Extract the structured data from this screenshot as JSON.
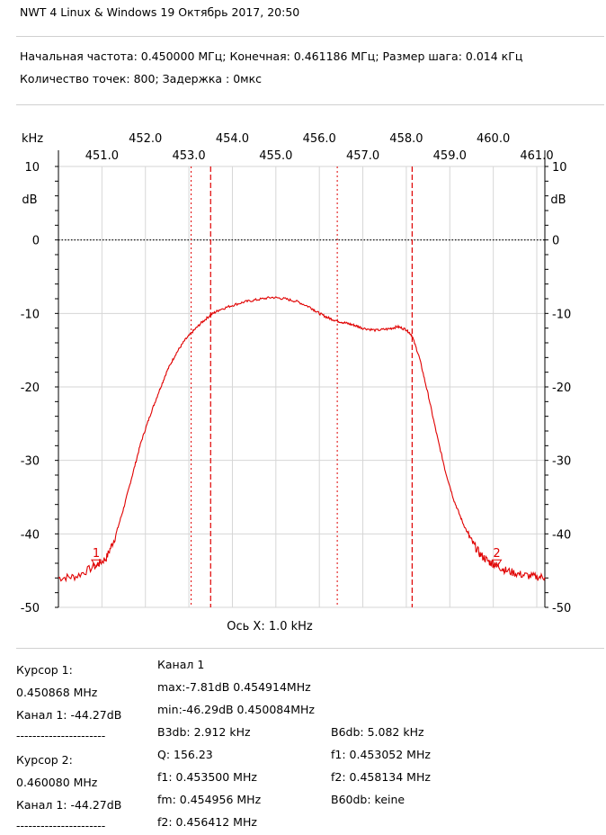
{
  "header": {
    "title": "NWT 4 Linux & Windows  19 Октябрь 2017, 20:50",
    "sweep_line1": "Начальная частота: 0.450000 МГц; Конечная: 0.461186 МГц; Размер шага: 0.014 кГц",
    "sweep_line2": "Количество точек:  800; Задержка :   0мкс"
  },
  "chart_data": {
    "type": "line",
    "x_unit_label": "kHz",
    "y_unit_label": "dB",
    "x_axis_label": "Ось X: 1.0 kHz",
    "xlim": [
      450.0,
      461.186
    ],
    "ylim": [
      -50,
      10
    ],
    "x_ticks_upper": [
      "452.0",
      "454.0",
      "456.0",
      "458.0",
      "460.0"
    ],
    "x_ticks_lower": [
      "451.0",
      "453.0",
      "455.0",
      "457.0",
      "459.0",
      "461.0"
    ],
    "y_ticks": [
      "10",
      "0",
      "-10",
      "-20",
      "-30",
      "-40",
      "-50"
    ],
    "y_tick_values": [
      10,
      0,
      -10,
      -20,
      -30,
      -40,
      -50
    ],
    "grid": true,
    "line_color": "#e00000",
    "zero_line_color": "#000000",
    "series": [
      {
        "x": [
          450.0,
          450.4,
          450.87,
          451.1,
          451.3,
          451.5,
          451.7,
          451.9,
          452.1,
          452.3,
          452.5,
          452.7,
          452.9,
          453.1,
          453.3,
          453.5,
          453.7,
          454.0,
          454.3,
          454.6,
          454.91,
          455.2,
          455.5,
          455.8,
          456.0,
          456.2,
          456.4,
          456.6,
          456.8,
          457.0,
          457.3,
          457.6,
          457.8,
          458.0,
          458.13,
          458.3,
          458.5,
          458.7,
          458.9,
          459.1,
          459.3,
          459.5,
          459.7,
          459.9,
          460.08,
          460.3,
          460.6,
          460.9,
          461.186
        ],
        "y": [
          -46.0,
          -45.8,
          -44.3,
          -43.3,
          -40.5,
          -36.5,
          -32.0,
          -27.5,
          -24.0,
          -20.8,
          -17.8,
          -15.5,
          -13.7,
          -12.4,
          -11.2,
          -10.2,
          -9.5,
          -8.9,
          -8.4,
          -8.1,
          -7.81,
          -8.0,
          -8.4,
          -9.2,
          -10.0,
          -10.6,
          -11.0,
          -11.3,
          -11.6,
          -12.0,
          -12.3,
          -12.1,
          -11.8,
          -12.2,
          -13.0,
          -16.0,
          -21.0,
          -26.5,
          -31.5,
          -35.5,
          -38.5,
          -41.0,
          -42.8,
          -43.8,
          -44.3,
          -45.0,
          -45.5,
          -45.8,
          -45.9
        ]
      }
    ],
    "markers": [
      {
        "label": "1",
        "x": 450.868,
        "y": -44.27
      },
      {
        "label": "2",
        "x": 460.08,
        "y": -44.27
      }
    ],
    "vlines_dashed": [
      453.5,
      458.134
    ],
    "vlines_dotted": [
      453.052,
      456.412
    ]
  },
  "readout": {
    "cursor1_title": "Курсор 1:",
    "cursor1_freq": "0.450868 MHz",
    "cursor1_channel": "Канал 1:  -44.27dB",
    "sep1": "----------------------",
    "cursor2_title": "Курсор 2:",
    "cursor2_freq": "0.460080 MHz",
    "cursor2_channel": "Канал 1:  -44.27dB",
    "sep2": "----------------------",
    "channel_title": "Канал 1",
    "max": "max:-7.81dB 0.454914MHz",
    "min": "min:-46.29dB 0.450084MHz",
    "b3db": "B3db: 2.912 kHz",
    "q": "Q: 156.23",
    "f1_3db": "f1: 0.453500 MHz",
    "fm": "fm: 0.454956 MHz",
    "f2_3db": "f2: 0.456412 MHz",
    "b6db": "B6db: 5.082 kHz",
    "f1_6db": "f1: 0.453052 MHz",
    "f2_6db": "f2: 0.458134 MHz",
    "b60db": "B60db: keine"
  }
}
